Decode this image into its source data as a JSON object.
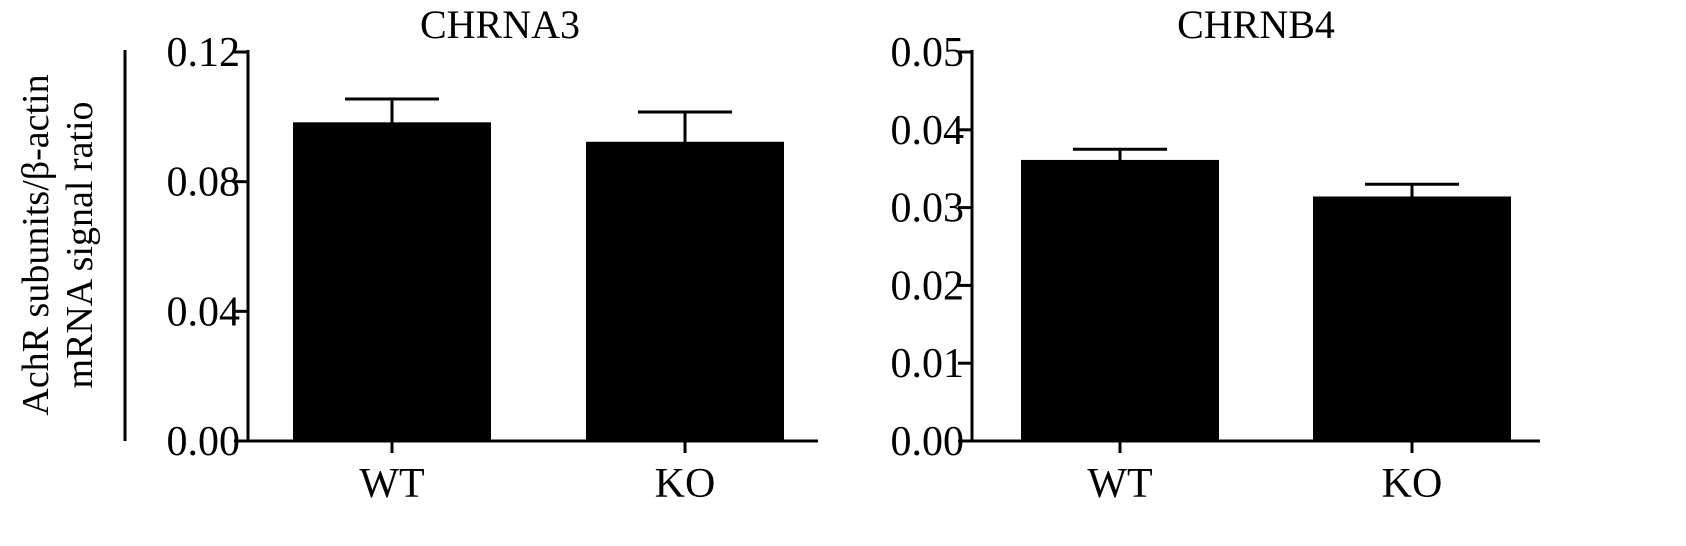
{
  "ylabel_lines": [
    "AchR subunits/β-actin",
    "mRNA signal ratio"
  ],
  "chart_data": [
    {
      "type": "bar",
      "title": "CHRNA3",
      "categories": [
        "WT",
        "KO"
      ],
      "values": [
        0.098,
        0.092
      ],
      "errors": [
        0.0075,
        0.0095
      ],
      "ylim": [
        0,
        0.12
      ],
      "yticks": [
        0.0,
        0.04,
        0.08,
        0.12
      ],
      "ytick_labels": [
        "0.00",
        "0.04",
        "0.08",
        "0.12"
      ],
      "xlabel": "",
      "ylabel": "AchR subunits/β-actin mRNA signal ratio",
      "grid": false,
      "bar_color": "#000000"
    },
    {
      "type": "bar",
      "title": "CHRNB4",
      "categories": [
        "WT",
        "KO"
      ],
      "values": [
        0.036,
        0.0313
      ],
      "errors": [
        0.0015,
        0.0017
      ],
      "ylim": [
        0,
        0.05
      ],
      "yticks": [
        0.0,
        0.01,
        0.02,
        0.03,
        0.04,
        0.05
      ],
      "ytick_labels": [
        "0.00",
        "0.01",
        "0.02",
        "0.03",
        "0.04",
        "0.05"
      ],
      "xlabel": "",
      "ylabel": "",
      "grid": false,
      "bar_color": "#000000"
    }
  ]
}
